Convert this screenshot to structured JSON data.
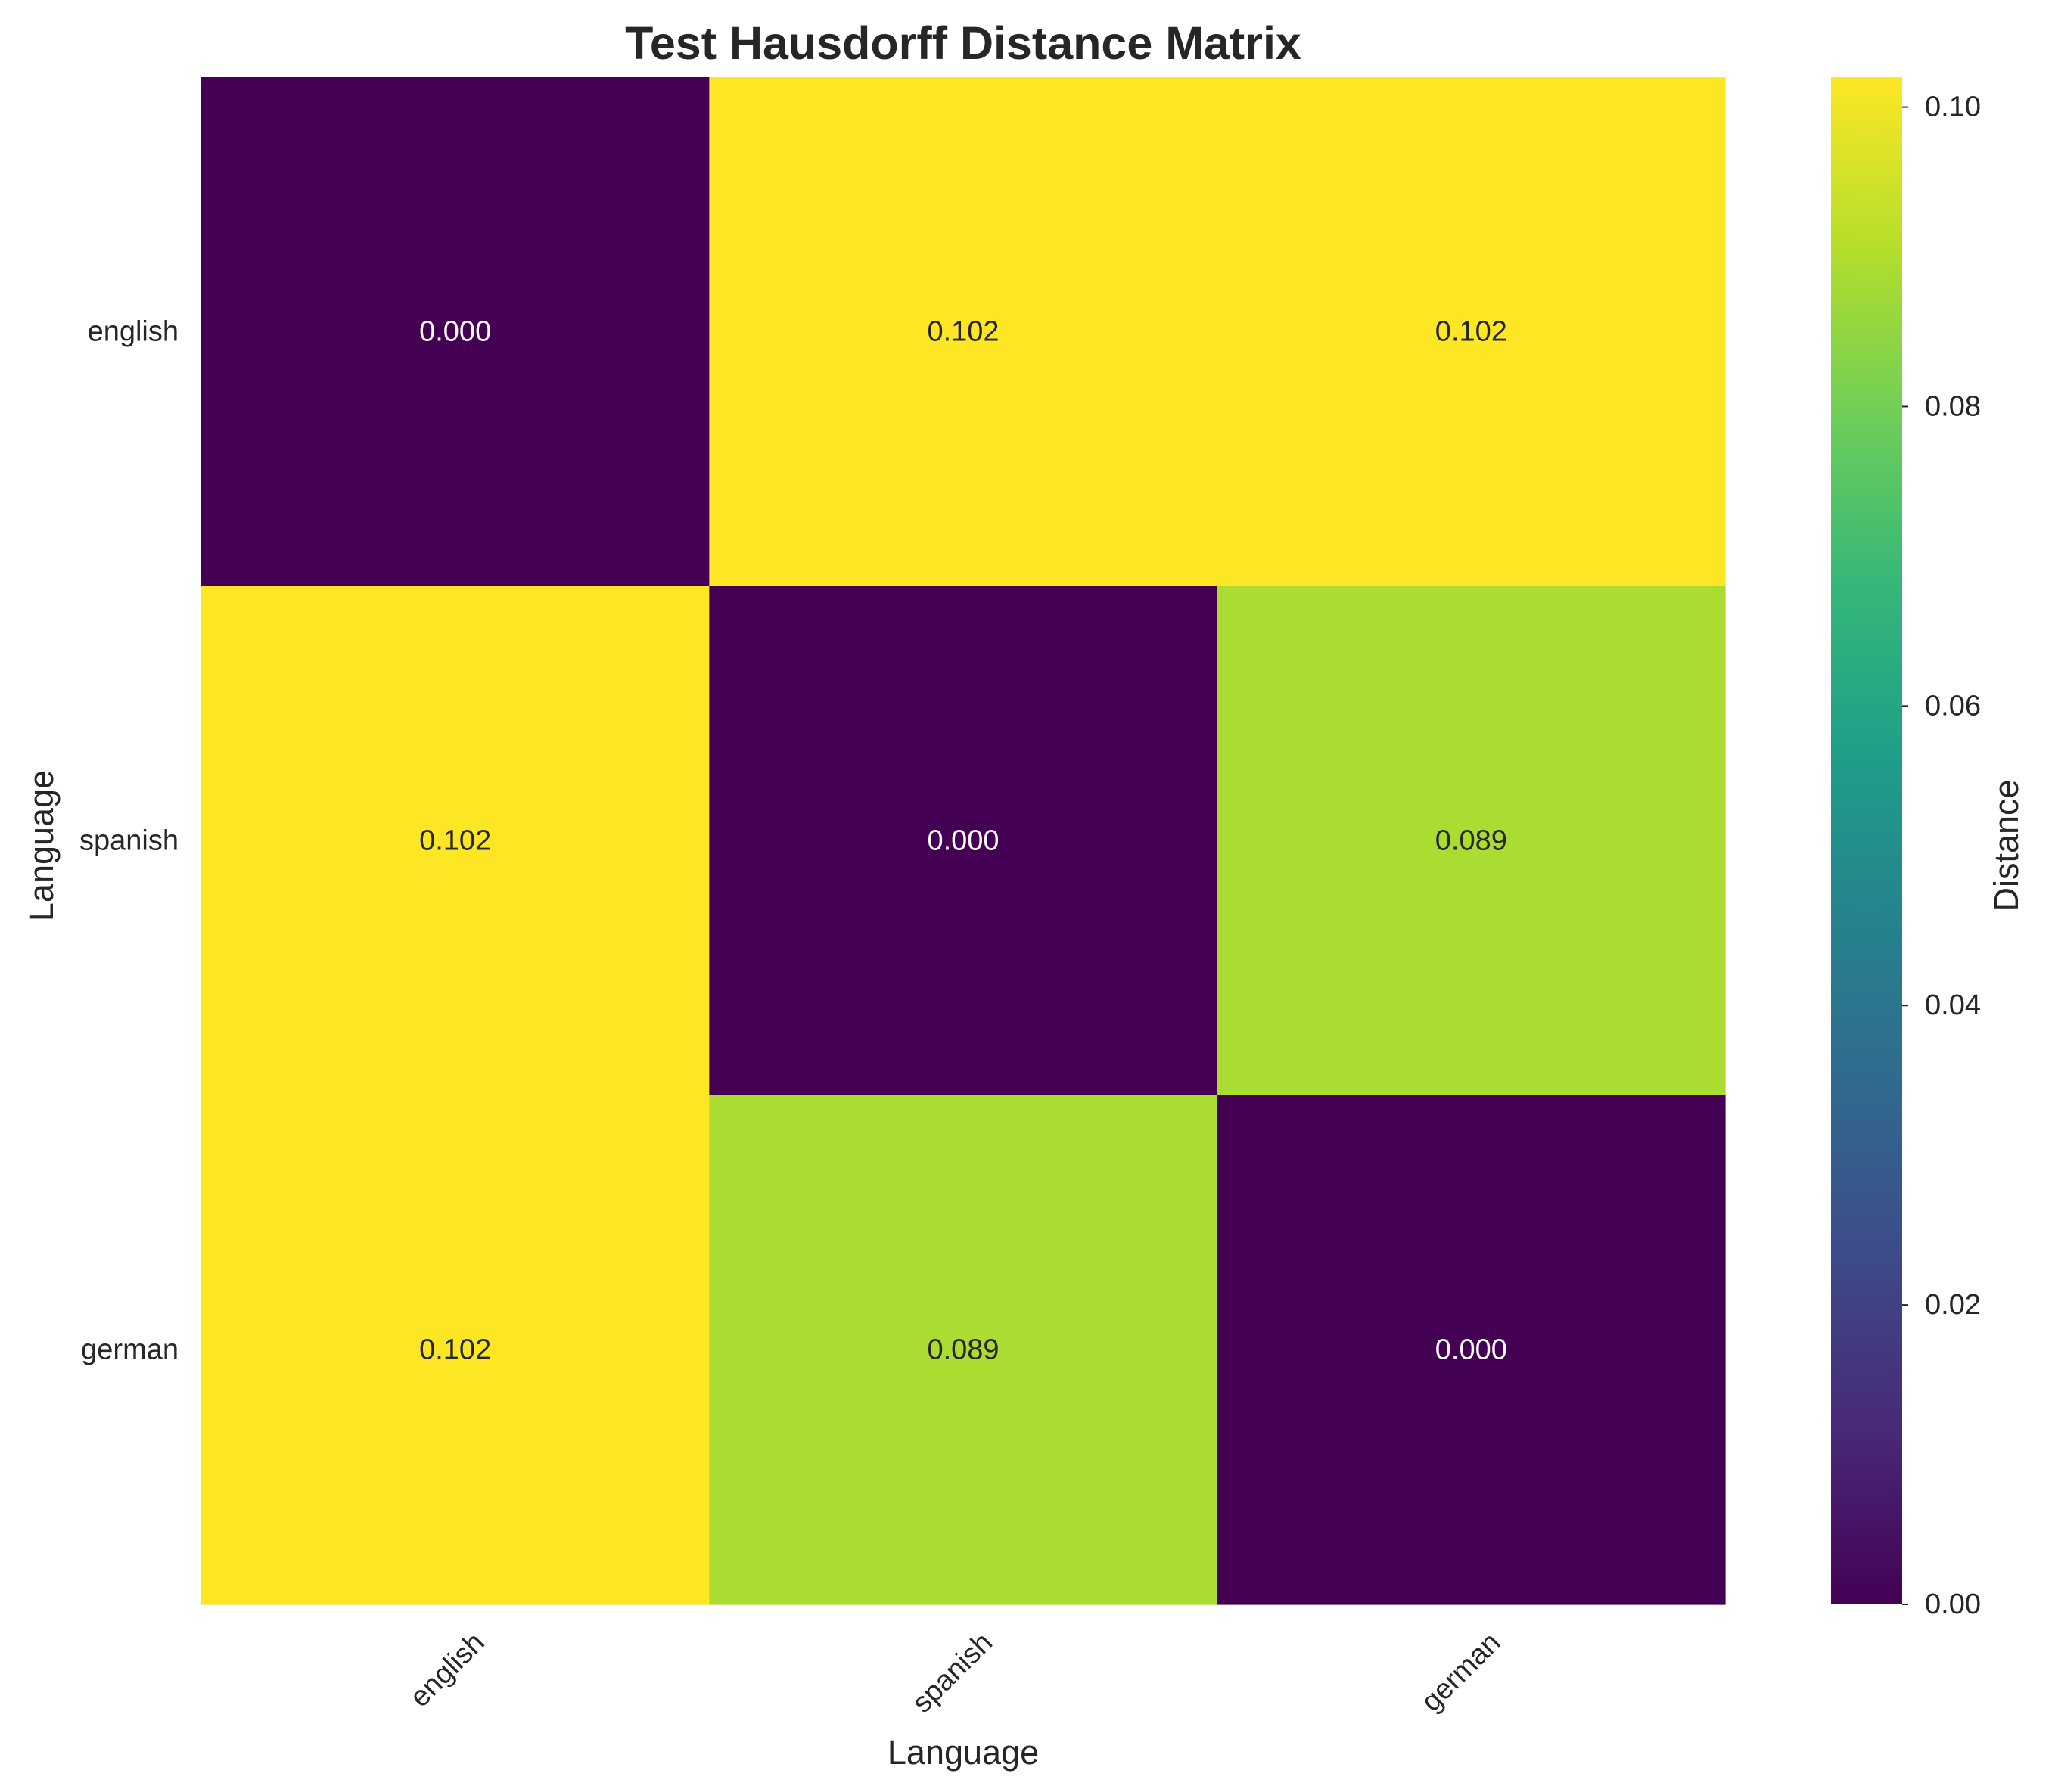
{
  "chart_data": {
    "type": "heatmap",
    "title": "Test Hausdorff Distance Matrix",
    "xlabel": "Language",
    "ylabel": "Language",
    "x_categories": [
      "english",
      "spanish",
      "german"
    ],
    "y_categories": [
      "english",
      "spanish",
      "german"
    ],
    "values": [
      [
        0.0,
        0.102,
        0.102
      ],
      [
        0.102,
        0.0,
        0.089
      ],
      [
        0.102,
        0.089,
        0.0
      ]
    ],
    "cell_labels": [
      [
        "0.000",
        "0.102",
        "0.102"
      ],
      [
        "0.102",
        "0.000",
        "0.089"
      ],
      [
        "0.102",
        "0.089",
        "0.000"
      ]
    ],
    "colormap": "viridis",
    "colorbar": {
      "label": "Distance",
      "range": [
        0,
        0.102
      ],
      "ticks": [
        0.0,
        0.02,
        0.04,
        0.06,
        0.08,
        0.1
      ],
      "tick_labels": [
        "0.00",
        "0.02",
        "0.04",
        "0.06",
        "0.08",
        "0.10"
      ]
    },
    "grid": false,
    "x_tick_rotation": 45,
    "colors": {
      "viridis_stops": [
        "#440154",
        "#482878",
        "#3e4989",
        "#31688e",
        "#26828e",
        "#1f9e89",
        "#35b779",
        "#6ece58",
        "#b5de2b",
        "#fde725"
      ],
      "text_dark": "#262626",
      "text_light": "#ffffff"
    }
  }
}
